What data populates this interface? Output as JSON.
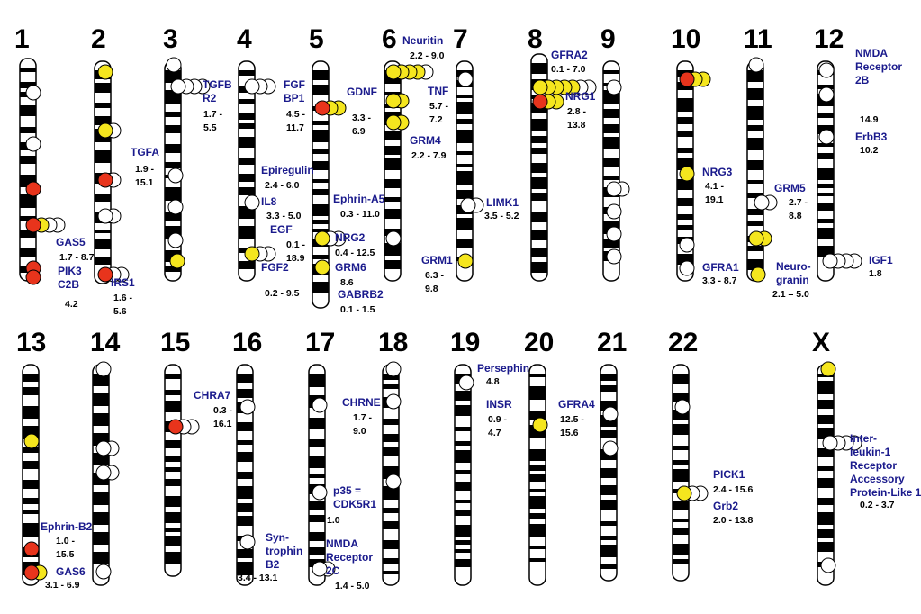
{
  "chromosomes": [
    "1",
    "2",
    "3",
    "4",
    "5",
    "6",
    "7",
    "8",
    "9",
    "10",
    "11",
    "12",
    "13",
    "14",
    "15",
    "16",
    "17",
    "18",
    "19",
    "20",
    "21",
    "22",
    "X"
  ],
  "genes": [
    {
      "name": [
        "GAS5"
      ],
      "range": [
        "1.7 - 8.7"
      ]
    },
    {
      "name": [
        "PIK3",
        "C2B"
      ],
      "range": [
        "4.2"
      ]
    },
    {
      "name": [
        "TGFA"
      ],
      "range": [
        "1.9 -",
        "15.1"
      ]
    },
    {
      "name": [
        "IRS1"
      ],
      "range": [
        "1.6 -",
        "5.6"
      ]
    },
    {
      "name": [
        "TGFB",
        "R2"
      ],
      "range": [
        "1.7 -",
        "5.5"
      ]
    },
    {
      "name": [
        "FGF",
        "BP1"
      ],
      "range": [
        "4.5 -",
        "11.7"
      ]
    },
    {
      "name": [
        "Epiregulin"
      ],
      "range": [
        "2.4 - 6.0"
      ]
    },
    {
      "name": [
        "IL8"
      ],
      "range": [
        "3.3 - 5.0"
      ]
    },
    {
      "name": [
        "EGF"
      ],
      "range": [
        "0.1 -",
        "18.9"
      ]
    },
    {
      "name": [
        "FGF2"
      ],
      "range": [
        "0.2 - 9.5"
      ]
    },
    {
      "name": [
        "GDNF"
      ],
      "range": [
        "3.3 -",
        "6.9"
      ]
    },
    {
      "name": [
        "Ephrin-A5"
      ],
      "range": [
        "0.3 - 11.0"
      ]
    },
    {
      "name": [
        "NRG2"
      ],
      "range": [
        "0.4 - 12.5"
      ]
    },
    {
      "name": [
        "GRM6"
      ],
      "range": [
        "8.6"
      ]
    },
    {
      "name": [
        "GABRB2"
      ],
      "range": [
        "0.1 - 1.5"
      ]
    },
    {
      "name": [
        "Neuritin"
      ],
      "range": [
        "2.2 - 9.0"
      ]
    },
    {
      "name": [
        "TNF"
      ],
      "range": [
        "5.7 -",
        "7.2"
      ]
    },
    {
      "name": [
        "GRM4"
      ],
      "range": [
        "2.2 - 7.9"
      ]
    },
    {
      "name": [
        "GRM1"
      ],
      "range": [
        "6.3 -",
        "9.8"
      ]
    },
    {
      "name": [
        "LIMK1"
      ],
      "range": [
        "3.5 - 5.2"
      ]
    },
    {
      "name": [
        "GFRA2"
      ],
      "range": [
        "0.1 - 7.0"
      ]
    },
    {
      "name": [
        "NRG1"
      ],
      "range": [
        "2.8 -",
        "13.8"
      ]
    },
    {
      "name": [
        "NRG3"
      ],
      "range": [
        "4.1 -",
        "19.1"
      ]
    },
    {
      "name": [
        "GFRA1"
      ],
      "range": [
        "3.3 - 8.7"
      ]
    },
    {
      "name": [
        "GRM5"
      ],
      "range": [
        "2.7 -",
        "8.8"
      ]
    },
    {
      "name": [
        "Neuro-",
        "granin"
      ],
      "range": [
        "2.1 – 5.0"
      ]
    },
    {
      "name": [
        "NMDA",
        "Receptor",
        "2B"
      ],
      "range": [
        "14.9"
      ]
    },
    {
      "name": [
        "ErbB3"
      ],
      "range": [
        "10.2"
      ]
    },
    {
      "name": [
        "IGF1"
      ],
      "range": [
        "1.8"
      ]
    },
    {
      "name": [
        "Ephrin-B2"
      ],
      "range": [
        "1.0 -",
        "15.5"
      ]
    },
    {
      "name": [
        "GAS6"
      ],
      "range": [
        "3.1 - 6.9"
      ]
    },
    {
      "name": [
        "CHRA7"
      ],
      "range": [
        "0.3 -",
        "16.1"
      ]
    },
    {
      "name": [
        "Syn-",
        "trophin",
        "B2"
      ],
      "range": [
        "3.4 - 13.1"
      ]
    },
    {
      "name": [
        "CHRNE"
      ],
      "range": [
        "1.7 -",
        "9.0"
      ]
    },
    {
      "name": [
        "p35 =",
        "CDK5R1"
      ],
      "range": [
        "1.0"
      ]
    },
    {
      "name": [
        "NMDA",
        "Receptor",
        "2C"
      ],
      "range": [
        "1.4 - 5.0"
      ]
    },
    {
      "name": [
        "Persephin"
      ],
      "range": [
        "4.8"
      ]
    },
    {
      "name": [
        "INSR"
      ],
      "range": [
        "0.9 -",
        "4.7"
      ]
    },
    {
      "name": [
        "GFRA4"
      ],
      "range": [
        "12.5 -",
        "15.6"
      ]
    },
    {
      "name": [
        "PICK1"
      ],
      "range": [
        "2.4 - 15.6"
      ]
    },
    {
      "name": [
        "Grb2"
      ],
      "range": [
        "2.0 - 13.8"
      ]
    },
    {
      "name": [
        "Inter-",
        "leukin-1",
        "Receptor",
        "Accessory",
        "Protein-Like 1"
      ],
      "range": [
        "0.2 - 3.7"
      ]
    }
  ]
}
